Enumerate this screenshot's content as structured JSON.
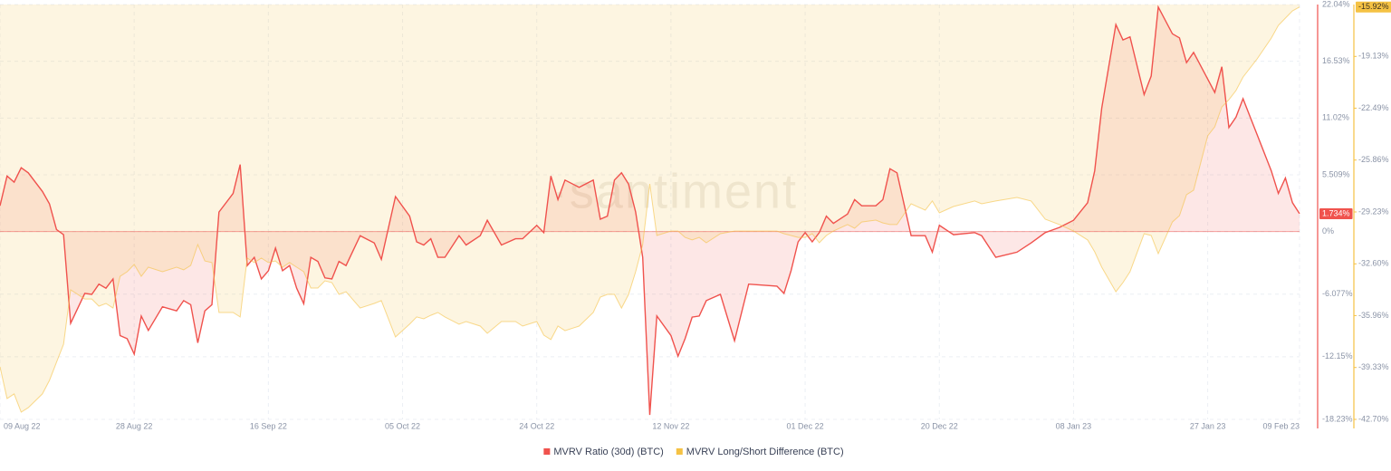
{
  "chart_data": {
    "type": "line",
    "watermark": "·santiment",
    "x": [
      "2022-08-09",
      "2022-08-10",
      "2022-08-11",
      "2022-08-12",
      "2022-08-13",
      "2022-08-15",
      "2022-08-16",
      "2022-08-17",
      "2022-08-18",
      "2022-08-19",
      "2022-08-21",
      "2022-08-22",
      "2022-08-23",
      "2022-08-24",
      "2022-08-25",
      "2022-08-26",
      "2022-08-27",
      "2022-08-28",
      "2022-08-29",
      "2022-08-30",
      "2022-09-01",
      "2022-09-03",
      "2022-09-04",
      "2022-09-05",
      "2022-09-06",
      "2022-09-07",
      "2022-09-08",
      "2022-09-09",
      "2022-09-11",
      "2022-09-12",
      "2022-09-13",
      "2022-09-14",
      "2022-09-15",
      "2022-09-16",
      "2022-09-17",
      "2022-09-18",
      "2022-09-19",
      "2022-09-20",
      "2022-09-21",
      "2022-09-22",
      "2022-09-23",
      "2022-09-24",
      "2022-09-25",
      "2022-09-26",
      "2022-09-27",
      "2022-09-29",
      "2022-10-01",
      "2022-10-02",
      "2022-10-04",
      "2022-10-06",
      "2022-10-07",
      "2022-10-08",
      "2022-10-09",
      "2022-10-10",
      "2022-10-11",
      "2022-10-13",
      "2022-10-14",
      "2022-10-16",
      "2022-10-17",
      "2022-10-19",
      "2022-10-21",
      "2022-10-22",
      "2022-10-24",
      "2022-10-25",
      "2022-10-26",
      "2022-10-27",
      "2022-10-28",
      "2022-10-30",
      "2022-11-01",
      "2022-11-02",
      "2022-11-03",
      "2022-11-04",
      "2022-11-05",
      "2022-11-06",
      "2022-11-07",
      "2022-11-08",
      "2022-11-09",
      "2022-11-10",
      "2022-11-12",
      "2022-11-13",
      "2022-11-14",
      "2022-11-15",
      "2022-11-16",
      "2022-11-17",
      "2022-11-19",
      "2022-11-21",
      "2022-11-23",
      "2022-11-25",
      "2022-11-27",
      "2022-11-28",
      "2022-11-29",
      "2022-11-30",
      "2022-12-01",
      "2022-12-02",
      "2022-12-03",
      "2022-12-04",
      "2022-12-05",
      "2022-12-07",
      "2022-12-08",
      "2022-12-09",
      "2022-12-11",
      "2022-12-12",
      "2022-12-13",
      "2022-12-14",
      "2022-12-16",
      "2022-12-18",
      "2022-12-19",
      "2022-12-20",
      "2022-12-22",
      "2022-12-25",
      "2022-12-26",
      "2022-12-28",
      "2022-12-31",
      "2023-01-02",
      "2023-01-04",
      "2023-01-06",
      "2023-01-08",
      "2023-01-10",
      "2023-01-11",
      "2023-01-12",
      "2023-01-14",
      "2023-01-15",
      "2023-01-16",
      "2023-01-18",
      "2023-01-19",
      "2023-01-20",
      "2023-01-22",
      "2023-01-23",
      "2023-01-24",
      "2023-01-25",
      "2023-01-27",
      "2023-01-28",
      "2023-01-29",
      "2023-01-30",
      "2023-01-31",
      "2023-02-01",
      "2023-02-03",
      "2023-02-05",
      "2023-02-06",
      "2023-02-07",
      "2023-02-08",
      "2023-02-09"
    ],
    "series": [
      {
        "name": "MVRV Ratio (30d) (BTC)",
        "color": "#f0524d",
        "fill": "area-to-zero",
        "current_label": "1.734%",
        "values": [
          2.5,
          5.4,
          4.8,
          6.2,
          5.7,
          3.9,
          2.7,
          0.2,
          -0.3,
          -8.9,
          -6.0,
          -6.1,
          -5.1,
          -5.5,
          -4.6,
          -10.1,
          -10.4,
          -11.9,
          -8.2,
          -9.6,
          -7.3,
          -7.7,
          -6.7,
          -7.1,
          -10.8,
          -7.7,
          -7.1,
          1.9,
          3.7,
          6.5,
          -3.3,
          -2.5,
          -4.6,
          -3.8,
          -1.6,
          -3.8,
          -3.3,
          -5.5,
          -7.0,
          -2.5,
          -2.9,
          -4.5,
          -4.6,
          -2.9,
          -3.3,
          -0.4,
          -1.1,
          -2.7,
          3.4,
          1.5,
          -1.0,
          -1.3,
          -0.7,
          -2.5,
          -2.5,
          -0.4,
          -1.3,
          -0.4,
          1.1,
          -1.3,
          -0.7,
          -0.7,
          0.6,
          -0.1,
          5.4,
          3.1,
          5.0,
          4.3,
          5.0,
          1.2,
          1.5,
          5.0,
          5.7,
          4.6,
          1.9,
          -2.5,
          -17.8,
          -8.2,
          -10.1,
          -12.1,
          -10.4,
          -8.3,
          -8.2,
          -6.7,
          -6.1,
          -10.6,
          -5.1,
          -5.2,
          -5.3,
          -6.0,
          -3.8,
          -1.0,
          -0.1,
          -1.0,
          -0.1,
          1.5,
          0.8,
          1.7,
          3.1,
          2.5,
          2.5,
          3.1,
          6.1,
          5.7,
          -0.4,
          -0.4,
          -2.0,
          0.6,
          -0.3,
          -0.1,
          -0.4,
          -2.5,
          -2.0,
          -1.1,
          -0.1,
          0.4,
          1.1,
          2.8,
          5.9,
          12.0,
          20.1,
          18.6,
          18.9,
          13.3,
          15.1,
          21.8,
          19.2,
          18.8,
          16.4,
          17.4,
          14.8,
          13.5,
          16.0,
          10.1,
          11.1,
          12.9,
          9.4,
          5.9,
          3.7,
          5.2,
          2.8,
          1.734
        ]
      },
      {
        "name": "MVRV Long/Short Difference (BTC)",
        "color": "#f5c244",
        "axis": "y2",
        "fill": "area-to-top",
        "current_label": "-15.92%",
        "values": [
          -39.29,
          -41.35,
          -41.05,
          -42.23,
          -41.94,
          -41.05,
          -40.17,
          -38.99,
          -37.82,
          -34.29,
          -34.88,
          -34.88,
          -35.35,
          -35.17,
          -35.47,
          -33.41,
          -33.11,
          -32.64,
          -33.41,
          -32.82,
          -33.11,
          -32.82,
          -32.99,
          -32.7,
          -31.35,
          -32.41,
          -32.52,
          -35.76,
          -35.76,
          -36.05,
          -32.23,
          -32.52,
          -32.23,
          -32.52,
          -32.41,
          -32.82,
          -32.52,
          -32.82,
          -33.11,
          -34.17,
          -34.17,
          -33.7,
          -33.82,
          -34.58,
          -34.41,
          -35.47,
          -35.17,
          -34.99,
          -37.35,
          -36.52,
          -36.05,
          -36.17,
          -35.94,
          -35.76,
          -36.05,
          -36.52,
          -36.35,
          -36.64,
          -37.11,
          -36.35,
          -36.35,
          -36.64,
          -36.35,
          -37.23,
          -37.52,
          -36.64,
          -36.94,
          -36.64,
          -35.76,
          -34.76,
          -34.58,
          -34.58,
          -35.47,
          -34.58,
          -33.11,
          -31.35,
          -27.41,
          -30.76,
          -30.47,
          -30.47,
          -30.88,
          -31.05,
          -30.88,
          -31.23,
          -30.64,
          -30.47,
          -30.47,
          -30.47,
          -30.47,
          -30.64,
          -30.76,
          -30.88,
          -30.88,
          -30.64,
          -31.23,
          -30.76,
          -30.47,
          -30.05,
          -30.29,
          -29.88,
          -29.76,
          -29.94,
          -30.05,
          -30.05,
          -28.7,
          -29.11,
          -28.52,
          -29.29,
          -28.88,
          -28.52,
          -28.7,
          -28.52,
          -28.29,
          -28.52,
          -29.7,
          -30.05,
          -30.47,
          -31.05,
          -31.82,
          -32.82,
          -34.41,
          -33.82,
          -33.11,
          -30.64,
          -30.76,
          -31.94,
          -29.88,
          -29.47,
          -28.11,
          -27.82,
          -24.29,
          -23.7,
          -22.41,
          -21.94,
          -21.35,
          -20.47,
          -19.29,
          -17.94,
          -17.11,
          -16.64,
          -16.17,
          -15.92
        ]
      }
    ],
    "xlim": [
      "2022-08-09",
      "2023-02-09"
    ],
    "xticks": [
      {
        "value": "2022-08-09",
        "label": "09 Aug 22"
      },
      {
        "value": "2022-08-28",
        "label": "28 Aug 22"
      },
      {
        "value": "2022-09-16",
        "label": "16 Sep 22"
      },
      {
        "value": "2022-10-05",
        "label": "05 Oct 22"
      },
      {
        "value": "2022-10-24",
        "label": "24 Oct 22"
      },
      {
        "value": "2022-11-12",
        "label": "12 Nov 22"
      },
      {
        "value": "2022-12-01",
        "label": "01 Dec 22"
      },
      {
        "value": "2022-12-20",
        "label": "20 Dec 22"
      },
      {
        "value": "2023-01-08",
        "label": "08 Jan 23"
      },
      {
        "value": "2023-01-27",
        "label": "27 Jan 23"
      },
      {
        "value": "2023-02-09",
        "label": "09 Feb 23"
      }
    ],
    "ylim": [
      -18.23,
      22.04
    ],
    "yticks": [
      {
        "value": 22.04,
        "label": "22.04%"
      },
      {
        "value": 16.53,
        "label": "16.53%"
      },
      {
        "value": 11.02,
        "label": "11.02%"
      },
      {
        "value": 5.509,
        "label": "5.509%"
      },
      {
        "value": 0,
        "label": "0%"
      },
      {
        "value": -6.077,
        "label": "-6.077%"
      },
      {
        "value": -12.15,
        "label": "-12.15%"
      },
      {
        "value": -18.23,
        "label": "-18.23%"
      }
    ],
    "y2lim": [
      -42.7,
      -15.76
    ],
    "y2ticks": [
      {
        "value": -19.13,
        "label": "-19.13%"
      },
      {
        "value": -22.49,
        "label": "-22.49%"
      },
      {
        "value": -25.86,
        "label": "-25.86%"
      },
      {
        "value": -29.23,
        "label": "-29.23%"
      },
      {
        "value": -32.6,
        "label": "-32.60%"
      },
      {
        "value": -35.96,
        "label": "-35.96%"
      },
      {
        "value": -39.33,
        "label": "-39.33%"
      },
      {
        "value": -42.7,
        "label": "-42.70%"
      }
    ],
    "grid": true,
    "legend": "bottom"
  }
}
